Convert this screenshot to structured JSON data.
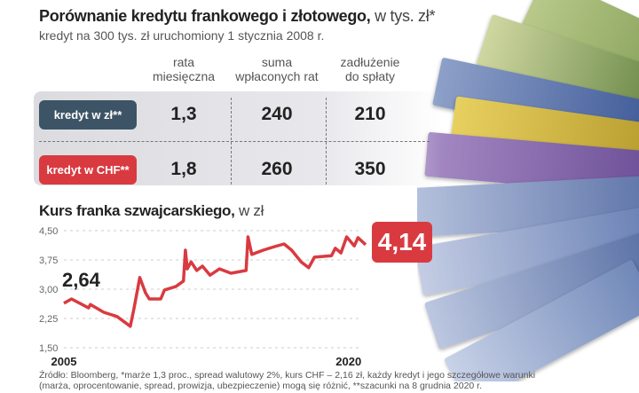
{
  "comparison": {
    "title_bold": "Porównanie kredytu frankowego i złotowego,",
    "title_light": " w tys. zł*",
    "subtitle": "kredyt na 300 tys. zł uruchomiony 1 stycznia 2008 r.",
    "columns": [
      [
        "rata",
        "miesięczna"
      ],
      [
        "suma",
        "wpłaconych rat"
      ],
      [
        "zadłużenie",
        "do spłaty"
      ]
    ],
    "rows": [
      {
        "label": "kredyt w zł**",
        "color": "#3d5466",
        "values": [
          "1,3",
          "240",
          "210"
        ]
      },
      {
        "label": "kredyt w CHF**",
        "color": "#d93a40",
        "values": [
          "1,8",
          "260",
          "350"
        ]
      }
    ]
  },
  "chart_data": {
    "type": "line",
    "title": "Kurs franka szwajcarskiego,",
    "title_unit": " w zł",
    "ylim": [
      1.5,
      4.5
    ],
    "yticks": [
      "4,50",
      "3,75",
      "3,00",
      "2,25",
      "1,50"
    ],
    "ytick_values": [
      4.5,
      3.75,
      3.0,
      2.25,
      1.5
    ],
    "xlim": [
      2005,
      2020.9
    ],
    "xticks": [
      "2005",
      "2020"
    ],
    "grid": true,
    "line_color": "#d93a40",
    "start_label": "2,64",
    "end_label": "4,14",
    "series": [
      {
        "x": [
          2005.0,
          2005.4,
          2006.3,
          2006.4,
          2007.1,
          2007.8,
          2008.5,
          2008.7,
          2009.0,
          2009.3,
          2009.5,
          2010.1,
          2010.3,
          2010.9,
          2011.3,
          2011.4,
          2011.5,
          2011.7,
          2012.0,
          2012.3,
          2012.7,
          2013.2,
          2013.8,
          2014.6,
          2014.7,
          2014.9,
          2015.5,
          2016.1,
          2016.6,
          2017.0,
          2017.5,
          2017.9,
          2018.2,
          2019.1,
          2019.3,
          2019.6,
          2019.9,
          2020.3,
          2020.5,
          2020.9
        ],
        "y": [
          2.64,
          2.75,
          2.52,
          2.61,
          2.41,
          2.3,
          2.05,
          2.52,
          3.3,
          2.91,
          2.75,
          2.75,
          2.98,
          3.07,
          3.21,
          4.0,
          3.52,
          3.7,
          3.48,
          3.59,
          3.36,
          3.52,
          3.41,
          3.48,
          4.34,
          3.89,
          4.0,
          4.09,
          4.16,
          4.0,
          3.7,
          3.55,
          3.82,
          3.86,
          4.05,
          3.93,
          4.34,
          4.11,
          4.32,
          4.14
        ]
      }
    ]
  },
  "footer": {
    "line1": "Źródło: Bloomberg, *marże 1,3 proc., spread walutowy 2%, kurs CHF – 2,16 zł, każdy kredyt i jego szczegółowe warunki",
    "line2": "(marża, oprocentowanie, spread, prowizja, ubezpieczenie) mogą się różnić, **szacunki na 8 grudnia 2020 r."
  }
}
